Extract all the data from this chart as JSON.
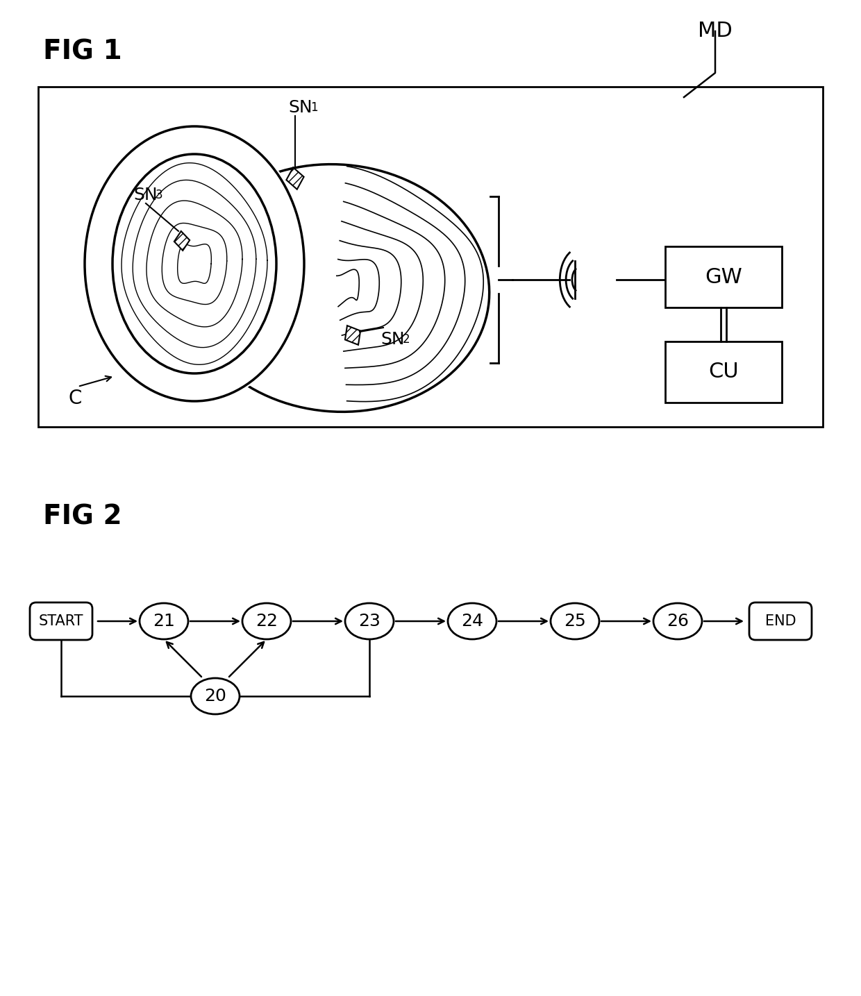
{
  "fig_label1": "FIG 1",
  "fig_label2": "FIG 2",
  "md_label": "MD",
  "gw_label": "GW",
  "cu_label": "CU",
  "c_label": "C",
  "sn1_label": "SN",
  "sn2_label": "SN",
  "sn3_label": "SN",
  "sn1_sub": "1",
  "sn2_sub": "2",
  "sn3_sub": "3",
  "bg_color": "#ffffff",
  "line_color": "#000000",
  "flow_nodes": [
    "START",
    "21",
    "22",
    "23",
    "24",
    "25",
    "26",
    "END"
  ],
  "flow_node_20": "20"
}
